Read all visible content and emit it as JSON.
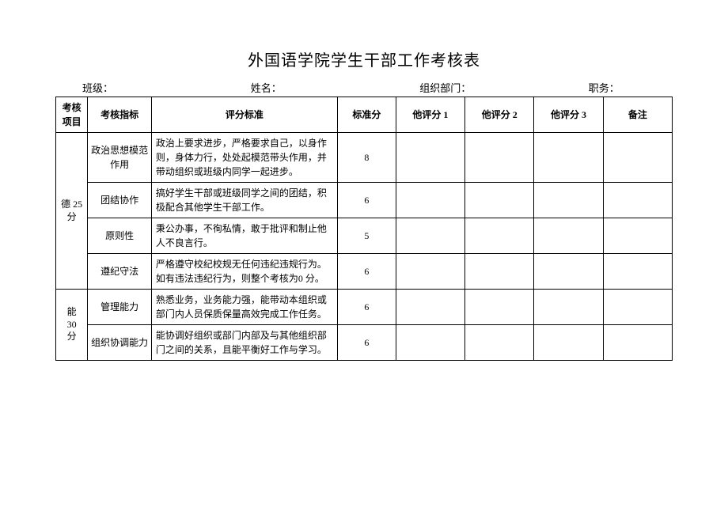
{
  "title": "外国语学院学生干部工作考核表",
  "header": {
    "class_label": "班级：",
    "name_label": "姓名：",
    "dept_label": "组织部门：",
    "position_label": "职务："
  },
  "columns": {
    "project": "考核项目",
    "indicator": "考核指标",
    "criteria": "评分标准",
    "standard_score": "标准分",
    "rate1": "他评分 1",
    "rate2": "他评分 2",
    "rate3": "他评分 3",
    "remark": "备注"
  },
  "sections": [
    {
      "label_line1": "德 25",
      "label_line2": "分",
      "rows": [
        {
          "indicator": "政治思想模范作用",
          "criteria": "政治上要求进步，严格要求自己，以身作则，身体力行，处处起模范带头作用，并带动组织或班级内同学一起进步。",
          "score": "8"
        },
        {
          "indicator": "团结协作",
          "criteria": "搞好学生干部或班级同学之间的团结，积极配合其他学生干部工作。",
          "score": "6"
        },
        {
          "indicator": "原则性",
          "criteria": "秉公办事，不徇私情，敢于批评和制止他人不良言行。",
          "score": "5"
        },
        {
          "indicator": "遵纪守法",
          "criteria": "严格遵守校纪校规无任何违纪违规行为。如有违法违纪行为，则整个考核为0 分。",
          "score": "6"
        }
      ]
    },
    {
      "label_line1": "能",
      "label_line2": "30",
      "label_line3": "分",
      "rows": [
        {
          "indicator": "管理能力",
          "criteria": "熟悉业务，业务能力强，能带动本组织或部门内人员保质保量高效完成工作任务。",
          "score": "6"
        },
        {
          "indicator": "组织协调能力",
          "criteria": "能协调好组织或部门内部及与其他组织部门之间的关系，且能平衡好工作与学习。",
          "score": "6"
        }
      ]
    }
  ]
}
